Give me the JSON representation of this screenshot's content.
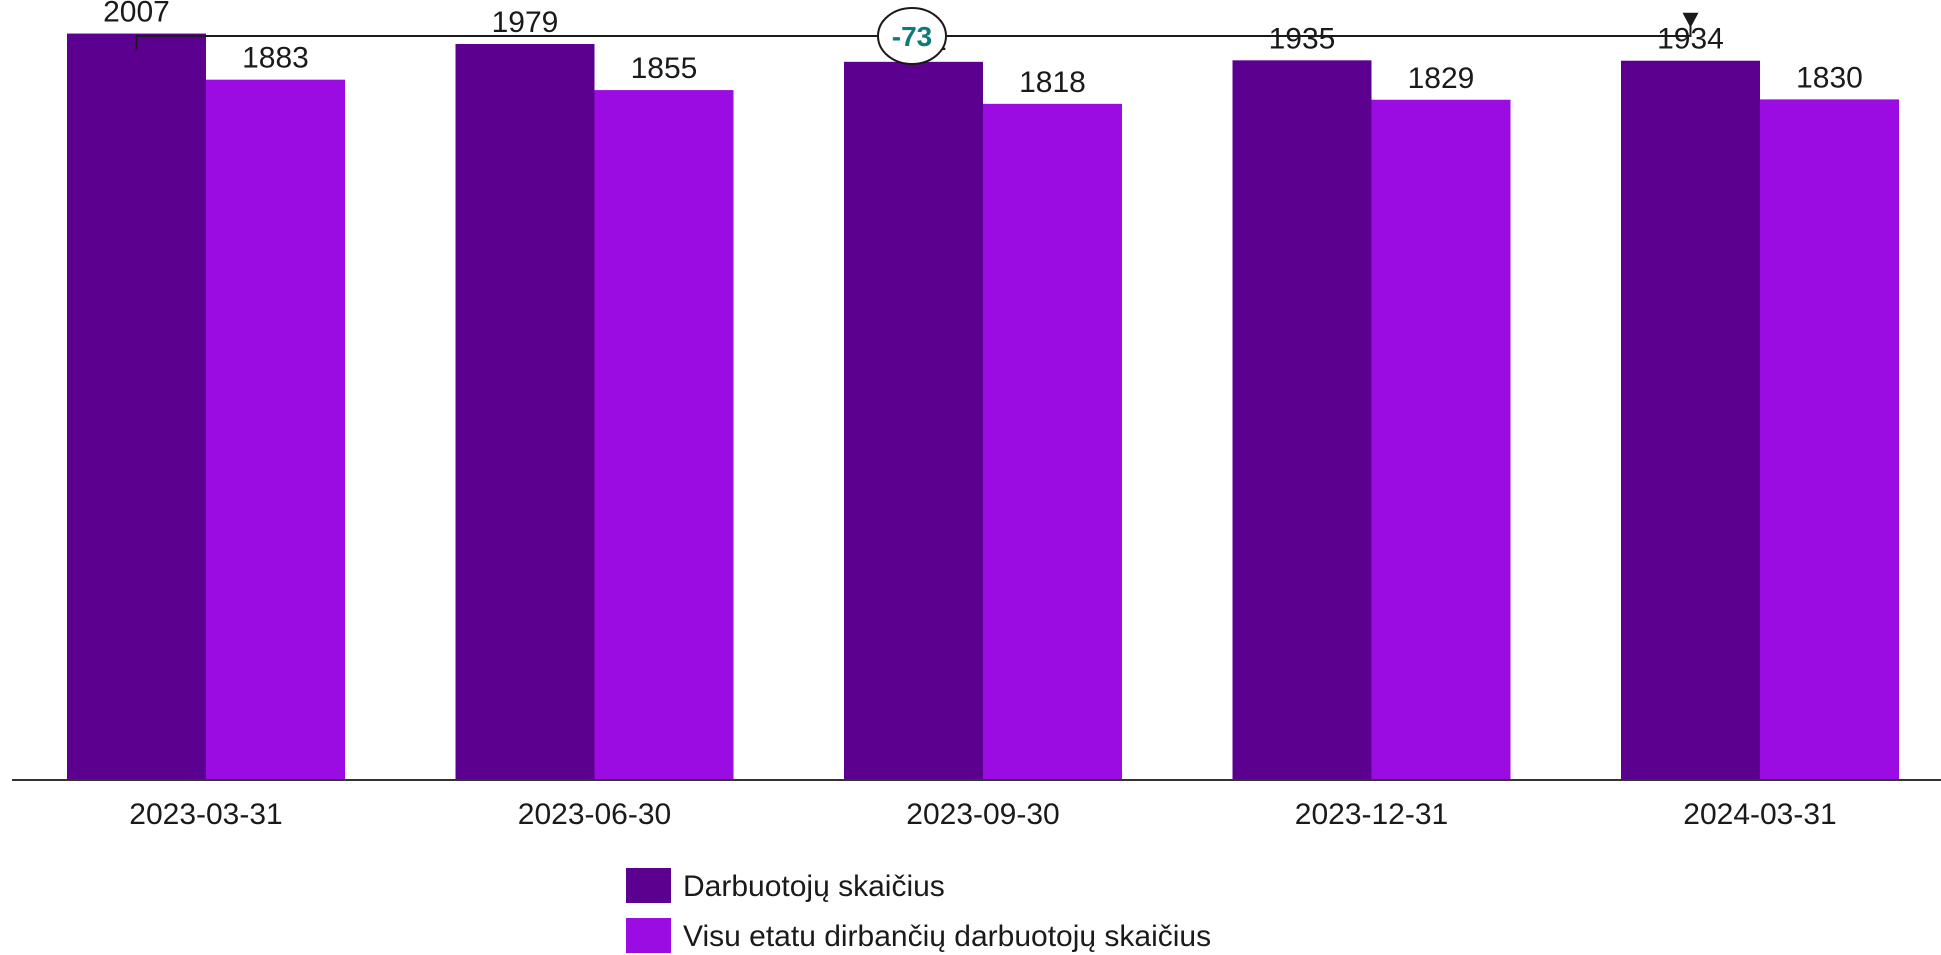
{
  "chart_data": {
    "type": "bar",
    "categories": [
      "2023-03-31",
      "2023-06-30",
      "2023-09-30",
      "2023-12-31",
      "2024-03-31"
    ],
    "series": [
      {
        "name": "Darbuotojų skaičius",
        "values": [
          2007,
          1979,
          1931,
          1935,
          1934
        ],
        "color": "#5c008f"
      },
      {
        "name": "Visu etatu dirbančių darbuotojų skaičius",
        "values": [
          1883,
          1855,
          1818,
          1829,
          1830
        ],
        "color": "#9b0ce3"
      }
    ],
    "ylim": [
      0,
      2030
    ],
    "grid": false,
    "legend_position": "bottom",
    "annotation": {
      "text": "-73",
      "from_category": "2023-03-31",
      "to_category": "2024-03-31",
      "color": "#0f7a7a"
    }
  }
}
